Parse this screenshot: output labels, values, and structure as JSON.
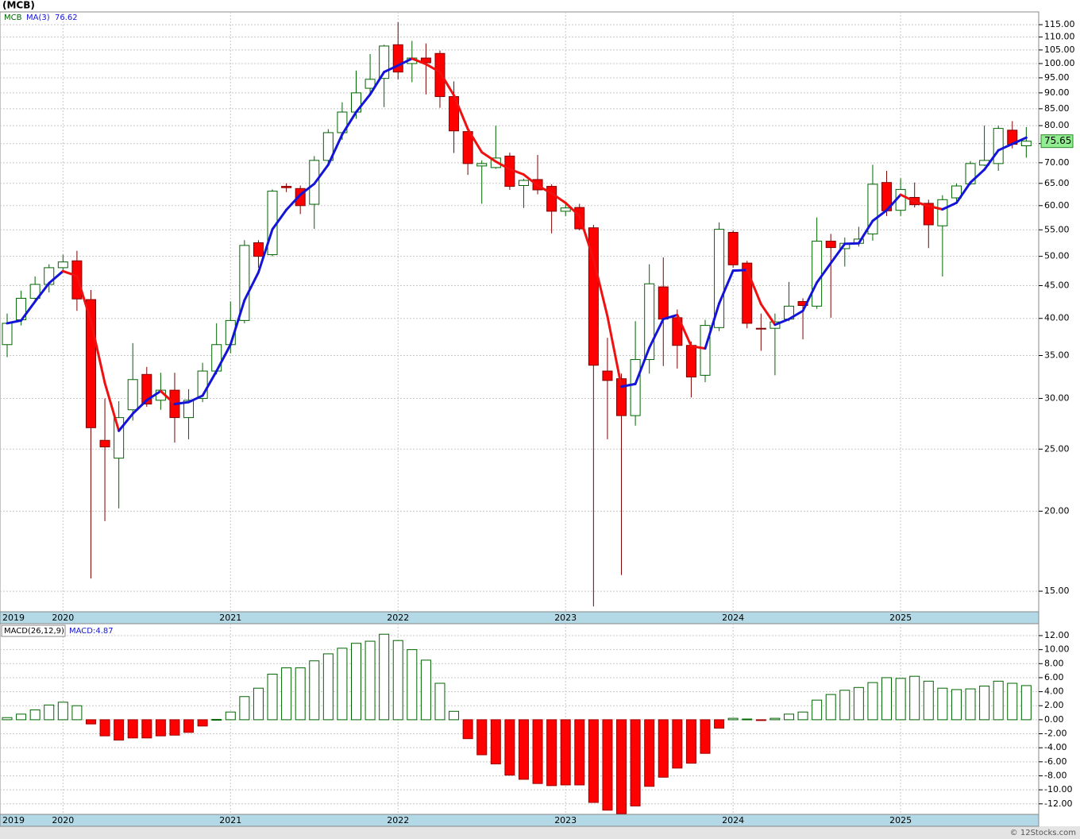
{
  "footer": "© 12Stocks.com",
  "chart_data": [
    {
      "type": "candlestick",
      "title": "(MCB)",
      "symbol": "MCB",
      "categories": [
        "2019",
        null,
        null,
        null,
        "2020",
        null,
        null,
        null,
        null,
        null,
        null,
        null,
        null,
        null,
        null,
        null,
        "2021",
        null,
        null,
        null,
        null,
        null,
        null,
        null,
        null,
        null,
        null,
        null,
        "2022",
        null,
        null,
        null,
        null,
        null,
        null,
        null,
        null,
        null,
        null,
        null,
        "2023",
        null,
        null,
        null,
        null,
        null,
        null,
        null,
        null,
        null,
        null,
        null,
        "2024",
        null,
        null,
        null,
        null,
        null,
        null,
        null,
        null,
        null,
        null,
        null,
        "2025",
        null,
        null,
        null,
        null,
        null,
        null,
        null,
        null,
        null
      ],
      "open": [
        36.4,
        39.8,
        43.0,
        45.2,
        48.0,
        49.2,
        42.8,
        25.8,
        24.2,
        28.8,
        32.7,
        29.8,
        30.9,
        28.0,
        30.0,
        33.1,
        36.4,
        39.7,
        52.5,
        50.3,
        64.3,
        63.8,
        60.3,
        70.6,
        78.0,
        84.0,
        91.5,
        94.8,
        107,
        100,
        102,
        103.7,
        88.8,
        78.3,
        69.2,
        68.8,
        71.7,
        64.5,
        65.9,
        64.3,
        58.8,
        59.6,
        55.4,
        33.1,
        32.2,
        28.2,
        34.5,
        44.8,
        40.1,
        36.3,
        32.6,
        38.7,
        54.5,
        48.8,
        38.6,
        38.6,
        39.9,
        42.5,
        41.8,
        52.8,
        51.4,
        52.4,
        54.2,
        65.2,
        59.0,
        61.8,
        60.5,
        55.8,
        61.7,
        64.9,
        69.4,
        69.8,
        78.7,
        74.4
      ],
      "high": [
        40.7,
        44.2,
        46.5,
        48.6,
        50.3,
        51.0,
        44.3,
        30.0,
        29.7,
        36.6,
        33.6,
        32.9,
        32.9,
        31.0,
        34.1,
        39.3,
        42.5,
        53.0,
        53.0,
        63.6,
        65.0,
        64.5,
        71.7,
        79.0,
        87.0,
        97.5,
        103.5,
        107,
        116,
        108.5,
        107.5,
        104.8,
        93.8,
        78.6,
        70.6,
        80.0,
        72.6,
        66.1,
        72.0,
        64.8,
        60.4,
        60.4,
        56.0,
        37.3,
        32.8,
        39.6,
        48.6,
        49.8,
        41.3,
        36.8,
        39.8,
        56.5,
        54.9,
        49.2,
        40.7,
        40.7,
        45.6,
        43.0,
        57.5,
        54.2,
        53.5,
        55.6,
        69.5,
        68.0,
        66.2,
        65.2,
        61.3,
        62.3,
        65.0,
        70.4,
        80.0,
        80.0,
        81.3,
        79.6
      ],
      "low": [
        34.8,
        39.0,
        42.5,
        43.9,
        47.2,
        41.1,
        15.7,
        19.3,
        20.2,
        27.7,
        29.1,
        28.8,
        25.6,
        25.9,
        29.6,
        32.7,
        35.3,
        39.3,
        48.0,
        50.0,
        63.0,
        58.2,
        55.2,
        69.7,
        76.0,
        82.0,
        90.0,
        85.5,
        94.5,
        93.5,
        89.5,
        85.3,
        72.5,
        67.0,
        60.4,
        68.5,
        63.5,
        59.5,
        62.5,
        54.3,
        57.8,
        54.9,
        14.2,
        25.9,
        15.9,
        27.2,
        32.8,
        33.7,
        33.4,
        30.1,
        31.8,
        38.2,
        48.0,
        38.6,
        35.6,
        32.6,
        39.6,
        37.1,
        41.4,
        40.1,
        48.2,
        51.8,
        52.9,
        57.8,
        57.8,
        59.6,
        51.5,
        46.5,
        61.0,
        64.6,
        69.2,
        68.0,
        73.7,
        71.3
      ],
      "close": [
        39.3,
        43.0,
        45.2,
        48.0,
        49.0,
        42.9,
        27.0,
        25.2,
        28.0,
        32.1,
        29.4,
        30.9,
        28.0,
        29.8,
        33.1,
        36.4,
        39.7,
        52.0,
        50.0,
        63.2,
        64.0,
        60.0,
        70.6,
        78.0,
        84.0,
        90.0,
        94.5,
        106.5,
        97,
        102,
        100.3,
        88.8,
        78.5,
        69.8,
        69.8,
        71.2,
        64.3,
        65.7,
        63.5,
        58.8,
        59.5,
        55.2,
        33.8,
        32.0,
        28.2,
        34.5,
        45.3,
        39.9,
        36.3,
        32.4,
        39.0,
        55.1,
        48.5,
        39.3,
        38.5,
        39.5,
        41.8,
        41.9,
        52.8,
        51.6,
        52.4,
        53.2,
        64.8,
        58.9,
        63.6,
        60.2,
        56.0,
        61.3,
        64.4,
        69.8,
        70.6,
        79.2,
        74.8,
        75.65
      ],
      "up_color": "#006400",
      "down_color": "#ff0000",
      "ma": {
        "name": "MA(3)",
        "last_label": "76.62",
        "rise_color": "#1414d8",
        "fall_color": "#f01010",
        "values": [
          39.3,
          39.7,
          42.5,
          45.4,
          47.4,
          46.6,
          39.6,
          31.7,
          26.7,
          28.4,
          29.8,
          30.8,
          29.4,
          29.6,
          30.3,
          33.1,
          36.4,
          42.7,
          47.2,
          55.1,
          59.1,
          62.4,
          64.9,
          69.5,
          77.5,
          84.0,
          89.5,
          97.0,
          99.3,
          101.8,
          99.8,
          97.0,
          89.2,
          79.0,
          72.7,
          70.3,
          68.4,
          67.1,
          64.5,
          62.7,
          60.6,
          57.8,
          49.5,
          40.3,
          31.3,
          31.6,
          36.0,
          39.9,
          40.5,
          36.2,
          35.9,
          42.2,
          47.5,
          47.6,
          42.1,
          39.1,
          39.9,
          41.1,
          45.5,
          48.8,
          52.3,
          52.4,
          56.8,
          59.0,
          62.4,
          60.9,
          59.9,
          59.2,
          60.6,
          65.2,
          68.3,
          73.2,
          74.9,
          76.62
        ]
      },
      "last_price_label": "75.65",
      "log_scale": true,
      "grid": true,
      "ylim": [
        13.93,
        120.4
      ],
      "yticks": [
        {
          "value": 15,
          "label": "15.00"
        },
        {
          "value": 20,
          "label": "20.00"
        },
        {
          "value": 25,
          "label": "25.00"
        },
        {
          "value": 30,
          "label": "30.00"
        },
        {
          "value": 35,
          "label": "35.00"
        },
        {
          "value": 40,
          "label": "40.00"
        },
        {
          "value": 45,
          "label": "45.00"
        },
        {
          "value": 50,
          "label": "50.00"
        },
        {
          "value": 55,
          "label": "55.00"
        },
        {
          "value": 60,
          "label": "60.00"
        },
        {
          "value": 65,
          "label": "65.00"
        },
        {
          "value": 70,
          "label": "70.00"
        },
        {
          "value": 75,
          "label": "75.00"
        },
        {
          "value": 80,
          "label": "80.00"
        },
        {
          "value": 85,
          "label": "85.00"
        },
        {
          "value": 90,
          "label": "90.00"
        },
        {
          "value": 95,
          "label": "95.00"
        },
        {
          "value": 100,
          "label": "100.00"
        },
        {
          "value": 105,
          "label": "105.00"
        },
        {
          "value": 110,
          "label": "110.00"
        },
        {
          "value": 115,
          "label": "115.00"
        }
      ]
    },
    {
      "type": "bar",
      "title": "MACD(26,12,9)",
      "last_label": "MACD:4.87",
      "categories": [
        "2019",
        null,
        null,
        null,
        "2020",
        null,
        null,
        null,
        null,
        null,
        null,
        null,
        null,
        null,
        null,
        null,
        "2021",
        null,
        null,
        null,
        null,
        null,
        null,
        null,
        null,
        null,
        null,
        null,
        "2022",
        null,
        null,
        null,
        null,
        null,
        null,
        null,
        null,
        null,
        null,
        null,
        "2023",
        null,
        null,
        null,
        null,
        null,
        null,
        null,
        null,
        null,
        null,
        null,
        "2024",
        null,
        null,
        null,
        null,
        null,
        null,
        null,
        null,
        null,
        null,
        null,
        "2025",
        null,
        null,
        null,
        null,
        null,
        null,
        null,
        null,
        null
      ],
      "values": [
        0.3,
        0.8,
        1.4,
        2.1,
        2.5,
        2.0,
        -0.6,
        -2.3,
        -2.9,
        -2.6,
        -2.6,
        -2.3,
        -2.2,
        -1.8,
        -0.9,
        0.05,
        1.1,
        3.3,
        4.5,
        6.5,
        7.4,
        7.4,
        8.4,
        9.4,
        10.2,
        10.9,
        11.2,
        12.2,
        11.3,
        10.0,
        8.5,
        5.2,
        1.2,
        -2.7,
        -5.0,
        -6.3,
        -7.9,
        -8.5,
        -9.1,
        -9.4,
        -9.3,
        -9.3,
        -11.8,
        -12.9,
        -13.4,
        -12.3,
        -9.5,
        -8.2,
        -6.9,
        -6.2,
        -4.8,
        -1.2,
        0.2,
        0.1,
        -0.05,
        0.2,
        0.8,
        1.1,
        2.8,
        3.6,
        4.2,
        4.6,
        5.3,
        6.0,
        5.9,
        6.2,
        5.5,
        4.5,
        4.3,
        4.4,
        4.8,
        5.5,
        5.2,
        4.87
      ],
      "pos_color": "#006400",
      "neg_color": "#ff0000",
      "grid": true,
      "ylim": [
        -13.5,
        13.7
      ],
      "yticks": [
        {
          "value": -12,
          "label": "-12.00"
        },
        {
          "value": -10,
          "label": "-10.00"
        },
        {
          "value": -8,
          "label": "-8.00"
        },
        {
          "value": -6,
          "label": "-6.00"
        },
        {
          "value": -4,
          "label": "-4.00"
        },
        {
          "value": -2,
          "label": "-2.00"
        },
        {
          "value": 0,
          "label": "0.00"
        },
        {
          "value": 2,
          "label": "2.00"
        },
        {
          "value": 4,
          "label": "4.00"
        },
        {
          "value": 6,
          "label": "6.00"
        },
        {
          "value": 8,
          "label": "8.00"
        },
        {
          "value": 10,
          "label": "10.00"
        },
        {
          "value": 12,
          "label": "12.00"
        }
      ]
    }
  ]
}
